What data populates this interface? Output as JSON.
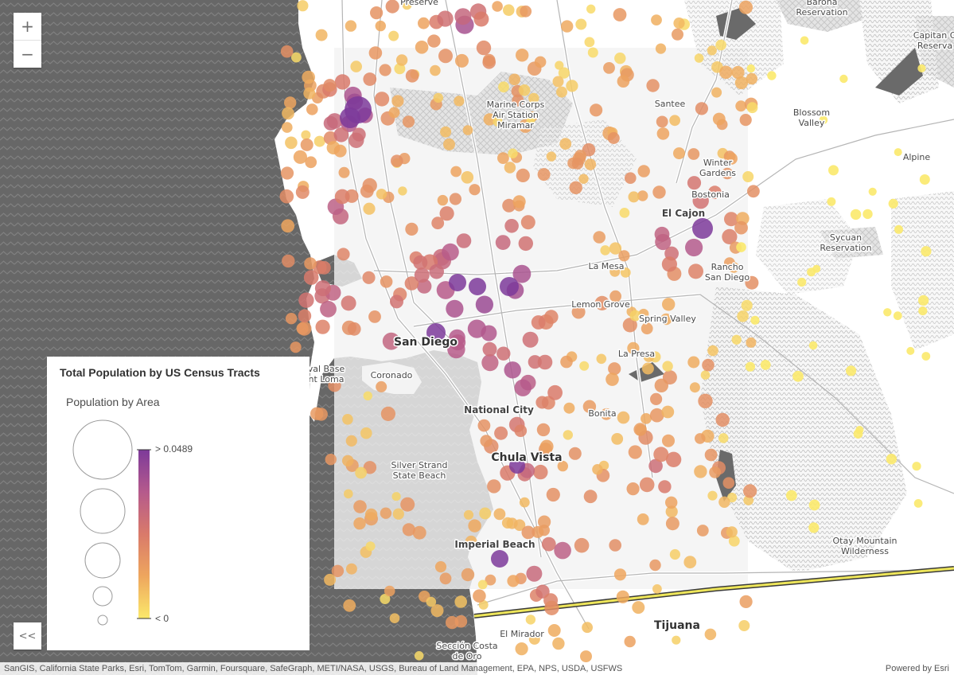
{
  "zoom": {
    "in_label": "+",
    "out_label": "−"
  },
  "legend": {
    "title": "Total Population by US Census Tracts",
    "size_heading": "Population by Area",
    "ramp_max_label": "> 0.0489",
    "ramp_min_label": "< 0",
    "ramp_colors": [
      "#fbe96b",
      "#eea65e",
      "#d97a6a",
      "#b55a8c",
      "#7d3a9a"
    ]
  },
  "collapse": {
    "label": "<<"
  },
  "attribution": {
    "sources": "SanGIS, California State Parks, Esri, TomTom, Garmin, Foursquare, SafeGraph, METI/NASA, USGS, Bureau of Land Management, EPA, NPS, USDA, USFWS",
    "powered_by": "Powered by Esri"
  },
  "colors": {
    "ocean": "#676767",
    "land": "#ffffff",
    "urban": "#f0f0f0",
    "border": "#e8e24a",
    "purple": "#7d3a9a",
    "yellow": "#fbe96b"
  },
  "places": [
    {
      "name": "Preserve",
      "lines": [
        "Preserve"
      ]
    },
    {
      "name": "Barona Reservation",
      "lines": [
        "Barona",
        "Reservation"
      ]
    },
    {
      "name": "Capitan Grande Reservation",
      "lines": [
        "Capitan G",
        "Reserva"
      ]
    },
    {
      "name": "Marine Corps Air Station Miramar",
      "lines": [
        "Marine Corps",
        "Air Station",
        "Miramar"
      ]
    },
    {
      "name": "Santee",
      "lines": [
        "Santee"
      ]
    },
    {
      "name": "Blossom Valley",
      "lines": [
        "Blossom",
        "Valley"
      ]
    },
    {
      "name": "Alpine",
      "lines": [
        "Alpine"
      ]
    },
    {
      "name": "Winter Gardens",
      "lines": [
        "Winter",
        "Gardens"
      ]
    },
    {
      "name": "Bostonia",
      "lines": [
        "Bostonia"
      ]
    },
    {
      "name": "El Cajon",
      "lines": [
        "El Cajon"
      ]
    },
    {
      "name": "Sycuan Reservation",
      "lines": [
        "Sycuan",
        "Reservation"
      ]
    },
    {
      "name": "La Mesa",
      "lines": [
        "La Mesa"
      ]
    },
    {
      "name": "Rancho San Diego",
      "lines": [
        "Rancho",
        "San Diego"
      ]
    },
    {
      "name": "Lemon Grove",
      "lines": [
        "Lemon Grove"
      ]
    },
    {
      "name": "Spring Valley",
      "lines": [
        "Spring Valley"
      ]
    },
    {
      "name": "San Diego",
      "lines": [
        "San Diego"
      ]
    },
    {
      "name": "La Presa",
      "lines": [
        "La Presa"
      ]
    },
    {
      "name": "Naval Base Point Loma",
      "lines": [
        "val Base",
        "nt Loma"
      ]
    },
    {
      "name": "Coronado",
      "lines": [
        "Coronado"
      ]
    },
    {
      "name": "National City",
      "lines": [
        "National City"
      ]
    },
    {
      "name": "Bonita",
      "lines": [
        "Bonita"
      ]
    },
    {
      "name": "Chula Vista",
      "lines": [
        "Chula Vista"
      ]
    },
    {
      "name": "Silver Strand State Beach",
      "lines": [
        "Silver Strand",
        "State Beach"
      ]
    },
    {
      "name": "Imperial Beach",
      "lines": [
        "Imperial Beach"
      ]
    },
    {
      "name": "Otay Mountain Wilderness",
      "lines": [
        "Otay Mountain",
        "Wilderness"
      ]
    },
    {
      "name": "Tijuana",
      "lines": [
        "Tijuana"
      ]
    },
    {
      "name": "El Mirador",
      "lines": [
        "El Mirador"
      ]
    },
    {
      "name": "Sección Costa de Oro",
      "lines": [
        "Sección Costa",
        "de Oro"
      ]
    }
  ]
}
